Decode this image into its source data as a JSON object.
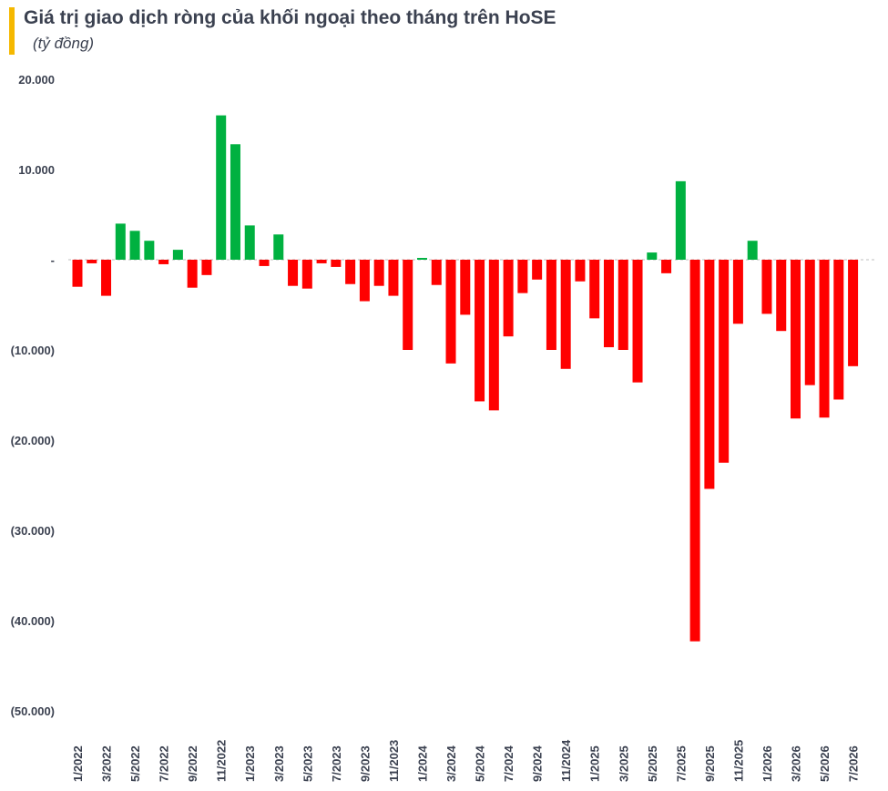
{
  "title": "Giá trị giao dịch ròng của khối ngoại theo tháng trên HoSE",
  "subtitle": "(tỷ đồng)",
  "colors": {
    "accent": "#f5b800",
    "positive": "#00b140",
    "negative": "#ff0000"
  },
  "chart_data": {
    "type": "bar",
    "title": "Giá trị giao dịch ròng của khối ngoại theo tháng trên HoSE",
    "subtitle": "(tỷ đồng)",
    "ylim": [
      -50000,
      20000
    ],
    "yticks": [
      20000,
      10000,
      0,
      -10000,
      -20000,
      -30000,
      -40000,
      -50000
    ],
    "ytick_labels": [
      "20.000",
      "10.000",
      "-",
      "(10.000)",
      "(20.000)",
      "(30.000)",
      "(40.000)",
      "(50.000)"
    ],
    "xtick_labels": [
      "1/2022",
      "3/2022",
      "5/2022",
      "7/2022",
      "9/2022",
      "11/2022",
      "1/2023",
      "3/2023",
      "5/2023",
      "7/2023",
      "9/2023",
      "11/2023",
      "1/2024",
      "3/2024",
      "5/2024",
      "7/2024",
      "9/2024",
      "11/2024",
      "1/2025",
      "3/2025",
      "5/2025",
      "7/2025",
      "9/2025",
      "11/2025",
      "1/2026",
      "3/2026",
      "5/2026",
      "7/2026"
    ],
    "categories": [
      "1/2022",
      "2/2022",
      "3/2022",
      "4/2022",
      "5/2022",
      "6/2022",
      "7/2022",
      "8/2022",
      "9/2022",
      "10/2022",
      "11/2022",
      "12/2022",
      "1/2023",
      "2/2023",
      "3/2023",
      "4/2023",
      "5/2023",
      "6/2023",
      "7/2023",
      "8/2023",
      "9/2023",
      "10/2023",
      "11/2023",
      "12/2023",
      "1/2024",
      "2/2024",
      "3/2024",
      "4/2024",
      "5/2024",
      "6/2024",
      "7/2024",
      "8/2024",
      "9/2024",
      "10/2024",
      "11/2024",
      "12/2024",
      "1/2025",
      "2/2025",
      "3/2025",
      "4/2025",
      "5/2025",
      "6/2025",
      "7/2025",
      "8/2025",
      "9/2025",
      "10/2025",
      "11/2025",
      "12/2025",
      "1/2026",
      "2/2026",
      "3/2026",
      "4/2026",
      "5/2026",
      "6/2026",
      "7/2026"
    ],
    "values": [
      -3000,
      -400,
      -4000,
      4000,
      3200,
      2100,
      -500,
      1100,
      -3100,
      -1700,
      16000,
      12800,
      3800,
      -700,
      2800,
      -2900,
      -3200,
      -400,
      -800,
      -2700,
      -4600,
      -2900,
      -4000,
      -10000,
      200,
      -2800,
      -11500,
      -6100,
      -15700,
      -16700,
      -8500,
      -3700,
      -2200,
      -10000,
      -12100,
      -2400,
      -6500,
      -9700,
      -10000,
      -13600,
      800,
      -1500,
      8700,
      -42300,
      -25400,
      -22500,
      -7100,
      2100,
      -6000,
      -7900,
      -17600,
      -13900,
      -17500,
      -15500,
      -11800
    ],
    "grid": false,
    "legend": "none"
  }
}
